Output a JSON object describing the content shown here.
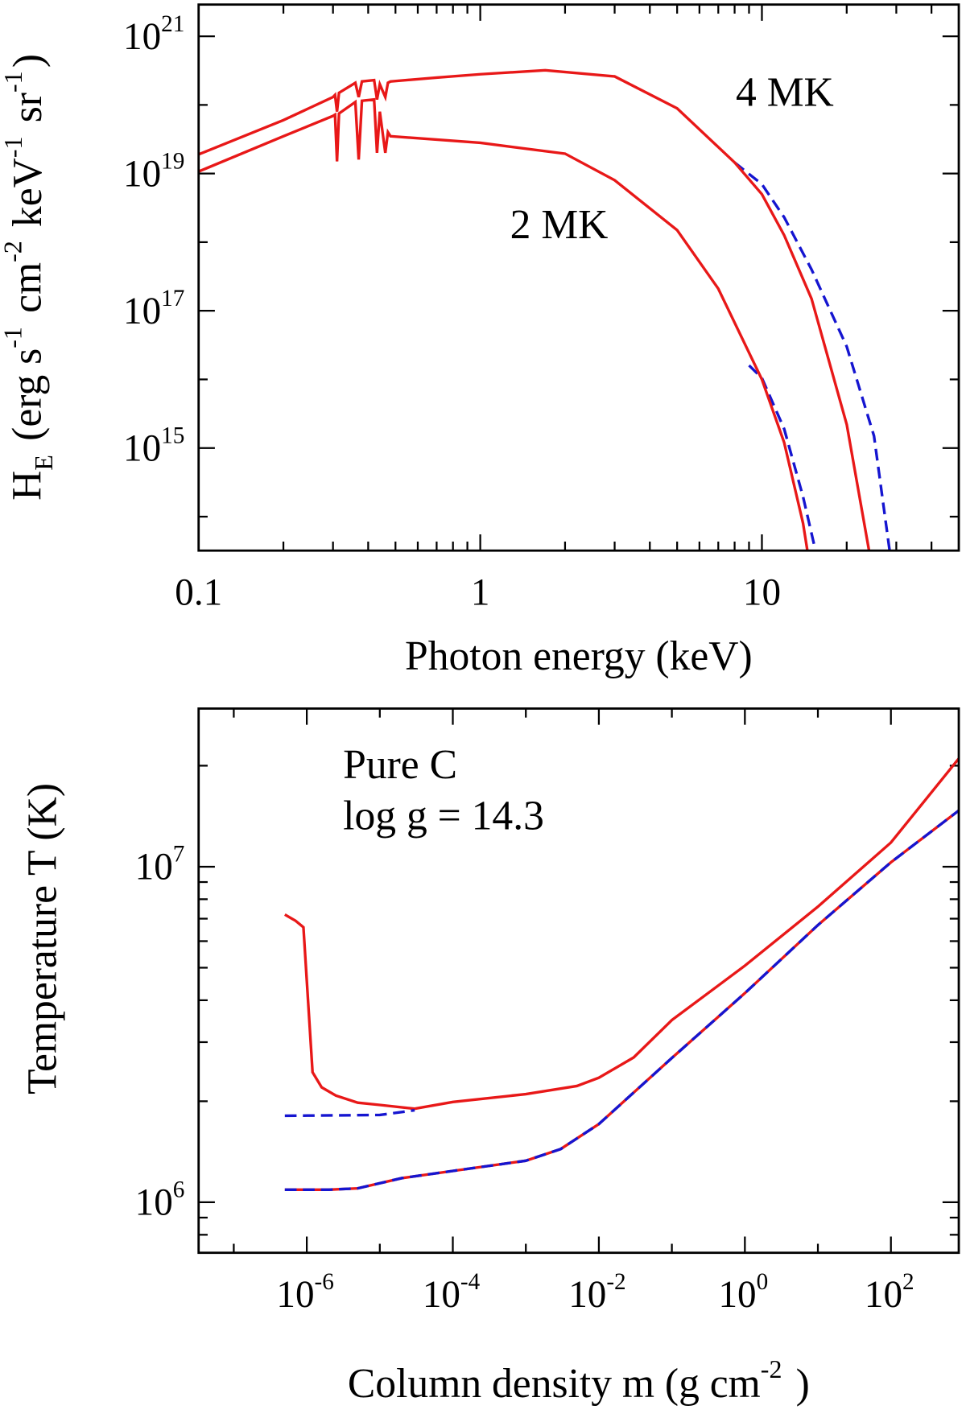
{
  "chart_data": [
    {
      "type": "line",
      "xlabel": "Photon energy  (keV)",
      "ylabel": "H_E (erg s^-1 cm^-2 keV^-1 sr^-1)",
      "xscale": "log",
      "yscale": "log",
      "xlim": [
        0.1,
        50
      ],
      "ylim": [
        32000000000000.0,
        2.9e+21
      ],
      "xticks": [
        0.1,
        1,
        10
      ],
      "yticks": [
        {
          "value": 1000000000000000.0,
          "label": "10^15"
        },
        {
          "value": 1e+17,
          "label": "10^17"
        },
        {
          "value": 1e+19,
          "label": "10^19"
        },
        {
          "value": 1e+21,
          "label": "10^21"
        }
      ],
      "annotations": [
        "4 MK",
        "2 MK"
      ],
      "series": [
        {
          "color": "#1515d0",
          "dashed": true,
          "x": [
            8,
            10,
            12,
            15,
            20,
            25,
            28.4
          ],
          "values": [
            1.45e+19,
            7e+18,
            2.3e+18,
            4e+17,
            3e+16,
            1500000000000000.0,
            32000000000000.0
          ]
        },
        {
          "color": "#1515d0",
          "dashed": true,
          "x": [
            9,
            10,
            12,
            14,
            15.5
          ],
          "values": [
            1.6e+16,
            1.05e+16,
            1900000000000000.0,
            195000000000000.0,
            32000000000000.0
          ]
        },
        {
          "color": "#e81818",
          "dashed": false,
          "x": [
            0.1,
            0.2,
            0.3,
            0.305,
            0.31,
            0.315,
            0.36,
            0.37,
            0.38,
            0.42,
            0.43,
            0.44,
            0.46,
            0.47,
            0.48,
            0.7,
            1,
            1.7,
            3,
            5,
            8,
            10,
            12,
            15,
            20,
            24
          ],
          "values": [
            1.9e+19,
            6e+19,
            1.3e+20,
            1.4e+20,
            8e+19,
            1.5e+20,
            2.1e+20,
            1.3e+20,
            2.2e+20,
            2.3e+20,
            1.2e+20,
            2e+20,
            1.3e+20,
            2.1e+20,
            2.2e+20,
            2.5e+20,
            2.8e+20,
            3.2e+20,
            2.6e+20,
            8.9e+19,
            1.45e+19,
            5e+18,
            1.26e+18,
            1.5e+17,
            2200000000000000.0,
            32000000000000.0
          ]
        },
        {
          "color": "#e81818",
          "dashed": false,
          "x": [
            0.1,
            0.2,
            0.3,
            0.305,
            0.31,
            0.315,
            0.36,
            0.37,
            0.38,
            0.42,
            0.43,
            0.44,
            0.46,
            0.47,
            0.48,
            1,
            2,
            3,
            5,
            7,
            10,
            12,
            14,
            14.5
          ],
          "values": [
            1.07e+19,
            3.5e+19,
            6.9e+19,
            7.2e+19,
            1.5e+19,
            7.5e+19,
            1.1e+20,
            1.6e+19,
            1.15e+20,
            1.2e+20,
            2e+19,
            8e+19,
            2e+19,
            4e+19,
            3.5e+19,
            2.8e+19,
            1.95e+19,
            8e+18,
            1.5e+18,
            2.1e+17,
            1e+16,
            1200000000000000.0,
            80000000000000.0,
            32000000000000.0
          ]
        }
      ]
    },
    {
      "type": "line",
      "xlabel": "Column density m  (g cm^-2 )",
      "ylabel": "Temperature T (K)",
      "xscale": "log",
      "yscale": "log",
      "xlim": [
        3.3e-08,
        850
      ],
      "ylim": [
        707000.0,
        29600000.0
      ],
      "xticks": [
        {
          "value": 1e-06,
          "label": "10^-6"
        },
        {
          "value": 0.0001,
          "label": "10^-4"
        },
        {
          "value": 0.01,
          "label": "10^-2"
        },
        {
          "value": 1,
          "label": "10^0"
        },
        {
          "value": 100,
          "label": "10^2"
        }
      ],
      "yticks": [
        {
          "value": 1000000.0,
          "label": "10^6"
        },
        {
          "value": 10000000.0,
          "label": "10^7"
        }
      ],
      "annotations": [
        "Pure C",
        "log g = 14.3"
      ],
      "series": [
        {
          "color": "#e81818",
          "dashed": false,
          "x": [
            5e-07,
            7e-07,
            9e-07,
            1.2e-06,
            1.6e-06,
            2.5e-06,
            5e-06,
            1e-05,
            3e-05,
            0.0001,
            0.001,
            0.005,
            0.01,
            0.03,
            0.1,
            1,
            10,
            100,
            850
          ],
          "values": [
            7200000.0,
            6900000.0,
            6600000.0,
            2440000.0,
            2200000.0,
            2080000.0,
            1980000.0,
            1950000.0,
            1900000.0,
            1990000.0,
            2100000.0,
            2220000.0,
            2350000.0,
            2700000.0,
            3490000.0,
            5070000.0,
            7600000.0,
            11800000.0,
            21000000.0
          ]
        },
        {
          "color": "#e81818",
          "dashed": false,
          "x": [
            5e-07,
            2e-06,
            5e-06,
            2e-05,
            0.0001,
            0.001,
            0.003,
            0.01,
            0.1,
            1,
            10,
            100,
            850
          ],
          "values": [
            1090000.0,
            1090000.0,
            1100000.0,
            1180000.0,
            1240000.0,
            1330000.0,
            1440000.0,
            1710000.0,
            2690000.0,
            4200000.0,
            6700000.0,
            10300000.0,
            14700000.0
          ]
        },
        {
          "color": "#1515d0",
          "dashed": true,
          "x": [
            5e-07,
            1e-05,
            3e-05
          ],
          "values": [
            1810000.0,
            1820000.0,
            1880000.0
          ]
        },
        {
          "color": "#1515d0",
          "dashed": true,
          "x": [
            5e-07,
            2e-06,
            5e-06,
            2e-05,
            0.0001,
            0.001,
            0.003,
            0.01,
            0.1,
            1,
            10,
            100,
            850
          ],
          "values": [
            1090000.0,
            1090000.0,
            1100000.0,
            1180000.0,
            1240000.0,
            1330000.0,
            1440000.0,
            1710000.0,
            2690000.0,
            4200000.0,
            6700000.0,
            10300000.0,
            14700000.0
          ]
        }
      ]
    }
  ]
}
